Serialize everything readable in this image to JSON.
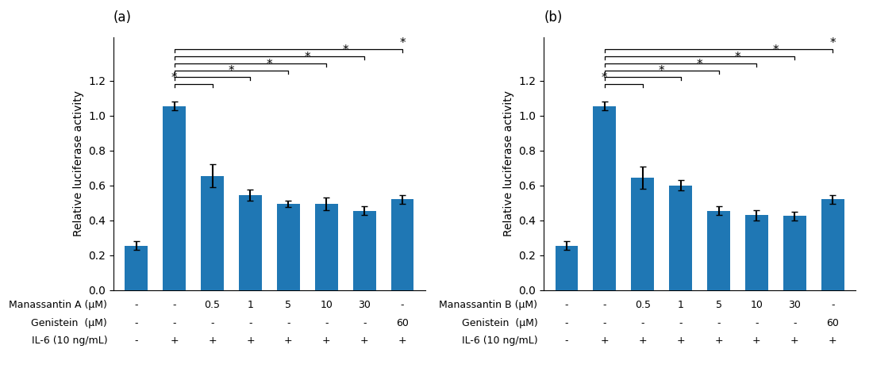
{
  "chart_data": [
    {
      "type": "bar",
      "title": "(a)",
      "ylabel": "Relative luciferase activity",
      "values": [
        0.255,
        1.055,
        0.655,
        0.545,
        0.495,
        0.495,
        0.455,
        0.52
      ],
      "errors": [
        0.025,
        0.025,
        0.065,
        0.03,
        0.02,
        0.035,
        0.025,
        0.025
      ],
      "ylim": [
        0,
        1.45
      ],
      "yticks": [
        {
          "value": 0,
          "label": "0.0"
        },
        0.2,
        0.4,
        0.6,
        0.8,
        {
          "value": 1,
          "label": "1.0"
        },
        1.2
      ],
      "table": [
        {
          "label": "Manassantin A (μM)",
          "values": [
            "-",
            "-",
            "0.5",
            "1",
            "5",
            "10",
            "30",
            "-"
          ]
        },
        {
          "label": "Genistein  (μM)",
          "values": [
            "-",
            "-",
            "-",
            "-",
            "-",
            "-",
            "-",
            "60"
          ]
        },
        {
          "label": "IL-6 (10 ng/mL)",
          "values": [
            "-",
            "+",
            "+",
            "+",
            "+",
            "+",
            "+",
            "+"
          ]
        }
      ],
      "brackets": [
        {
          "left": 1,
          "right": 2,
          "y": 1.18,
          "text": "*",
          "text_x": 1.0
        },
        {
          "left": 1,
          "right": 3,
          "y": 1.22,
          "text": "*",
          "text_x": 2.5
        },
        {
          "left": 1,
          "right": 4,
          "y": 1.26,
          "text": "*",
          "text_x": 3.5
        },
        {
          "left": 1,
          "right": 5,
          "y": 1.3,
          "text": "*",
          "text_x": 4.5
        },
        {
          "left": 1,
          "right": 6,
          "y": 1.34,
          "text": "*",
          "text_x": 5.5
        },
        {
          "left": 1,
          "right": 7,
          "y": 1.38,
          "text": "*",
          "text_x": 7.0
        }
      ]
    },
    {
      "type": "bar",
      "title": "(b)",
      "ylabel": "Relative luciferase activity",
      "values": [
        0.255,
        1.055,
        0.645,
        0.6,
        0.455,
        0.43,
        0.425,
        0.52
      ],
      "errors": [
        0.025,
        0.025,
        0.065,
        0.03,
        0.025,
        0.03,
        0.025,
        0.025
      ],
      "ylim": [
        0,
        1.45
      ],
      "yticks": [
        {
          "value": 0,
          "label": "0.0"
        },
        0.2,
        0.4,
        0.6,
        0.8,
        {
          "value": 1,
          "label": "1.0"
        },
        1.2
      ],
      "table": [
        {
          "label": "Manassantin B (μM)",
          "values": [
            "-",
            "-",
            "0.5",
            "1",
            "5",
            "10",
            "30",
            "-"
          ]
        },
        {
          "label": "Genistein  (μM)",
          "values": [
            "-",
            "-",
            "-",
            "-",
            "-",
            "-",
            "-",
            "60"
          ]
        },
        {
          "label": "IL-6 (10 ng/mL)",
          "values": [
            "-",
            "+",
            "+",
            "+",
            "+",
            "+",
            "+",
            "+"
          ]
        }
      ],
      "brackets": [
        {
          "left": 1,
          "right": 2,
          "y": 1.18,
          "text": "*",
          "text_x": 1.0
        },
        {
          "left": 1,
          "right": 3,
          "y": 1.22,
          "text": "*",
          "text_x": 2.5
        },
        {
          "left": 1,
          "right": 4,
          "y": 1.26,
          "text": "*",
          "text_x": 3.5
        },
        {
          "left": 1,
          "right": 5,
          "y": 1.3,
          "text": "*",
          "text_x": 4.5
        },
        {
          "left": 1,
          "right": 6,
          "y": 1.34,
          "text": "*",
          "text_x": 5.5
        },
        {
          "left": 1,
          "right": 7,
          "y": 1.38,
          "text": "*",
          "text_x": 7.0
        }
      ]
    }
  ]
}
